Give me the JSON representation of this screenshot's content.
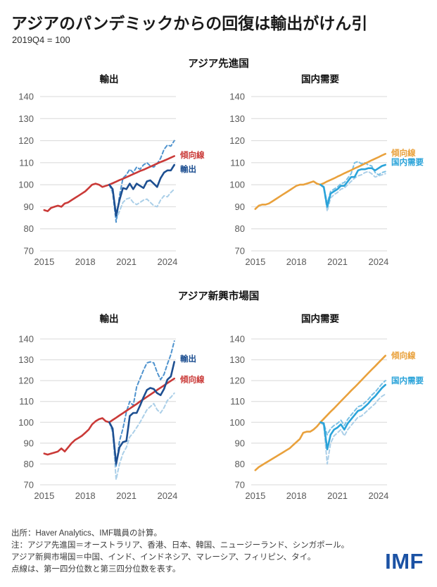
{
  "header": {
    "title": "アジアのパンデミックからの回復は輸出がけん引",
    "subtitle": "2019Q4 = 100"
  },
  "groups": [
    {
      "label": "アジア先進国"
    },
    {
      "label": "アジア新興市場国"
    }
  ],
  "footer": {
    "lines": [
      "出所：Haver Analytics、IMF職員の計算。",
      "注：アジア先進国＝オーストラリア、香港、日本、韓国、ニュージーランド、シンガポール。",
      "アジア新興市場国＝中国、インド、インドネシア、マレーシア、フィリピン、タイ。",
      "点線は、第一四分位数と第三四分位数を表す。"
    ],
    "logo": "IMF",
    "logo_color": "#1b52a4"
  },
  "style": {
    "grid_color": "#d8d8d8",
    "tick_color": "#5a5a5a"
  },
  "chart_data": [
    {
      "type": "line",
      "group": "アジア先進国",
      "title": "輸出",
      "xlim": [
        2014.7,
        2024.62
      ],
      "ylim": [
        70,
        140
      ],
      "x_ticks": [
        2015,
        2018,
        2021,
        2024
      ],
      "y_ticks": [
        140,
        130,
        120,
        110,
        100,
        90,
        80,
        70
      ],
      "grid": true,
      "series": [
        {
          "name": "第一四分位数",
          "color": "#abcfe8",
          "dash": true,
          "width": 2,
          "start": 2019.75,
          "step": 0.25,
          "values": [
            100,
            96,
            84,
            88,
            92,
            93.5,
            94,
            92,
            91,
            92,
            93,
            93.5,
            92,
            90.5,
            90,
            93,
            95,
            94.5,
            96.5,
            98
          ]
        },
        {
          "name": "第三四分位数",
          "color": "#4f93ce",
          "dash": true,
          "width": 2,
          "start": 2019.75,
          "step": 0.25,
          "values": [
            100,
            97,
            83,
            95,
            103,
            104.5,
            107,
            105.5,
            108,
            107,
            109,
            110,
            108.5,
            108,
            109.5,
            112,
            116,
            118,
            117.5,
            120
          ]
        },
        {
          "name": "傾向線",
          "color": "#ca3a38",
          "dash": false,
          "width": 2.6,
          "start": 2015.0,
          "step": 0.25,
          "label_y": 113.5,
          "values": [
            88.5,
            88,
            89.5,
            90,
            90.5,
            90,
            91.5,
            92,
            93,
            94,
            95,
            96,
            97,
            98.5,
            100,
            100.5,
            100,
            99,
            99.5,
            100,
            100.7,
            101.4,
            102.1,
            102.7,
            103.4,
            104.1,
            104.8,
            105.5,
            106.2,
            106.8,
            107.5,
            108.2,
            108.9,
            109.6,
            110.3,
            110.9,
            111.6,
            112.3,
            113
          ]
        },
        {
          "name": "輸出",
          "color": "#1d4f91",
          "dash": false,
          "width": 2.6,
          "start": 2019.75,
          "step": 0.25,
          "label_y": 107,
          "values": [
            100,
            98,
            86,
            93,
            98.5,
            98,
            100.5,
            98,
            100.5,
            99.5,
            98.5,
            101.5,
            102,
            100.5,
            99,
            103,
            105.5,
            106.5,
            106.5,
            109
          ]
        }
      ]
    },
    {
      "type": "line",
      "group": "アジア先進国",
      "title": "国内需要",
      "xlim": [
        2014.7,
        2024.62
      ],
      "ylim": [
        70,
        140
      ],
      "x_ticks": [
        2015,
        2018,
        2021,
        2024
      ],
      "y_ticks": [
        140,
        130,
        120,
        110,
        100,
        90,
        80,
        70
      ],
      "grid": true,
      "series": [
        {
          "name": "第一四分位数",
          "color": "#abcfe8",
          "dash": true,
          "width": 2,
          "start": 2019.75,
          "step": 0.25,
          "values": [
            100,
            98.5,
            88,
            94,
            95.5,
            96.5,
            98,
            98.5,
            100,
            101.5,
            103,
            104,
            104.5,
            105.5,
            106,
            105,
            103.5,
            104,
            104.5,
            105
          ]
        },
        {
          "name": "第三四分位数",
          "color": "#7bc0e4",
          "dash": true,
          "width": 2,
          "start": 2019.75,
          "step": 0.25,
          "values": [
            100,
            99,
            91.5,
            97,
            98,
            99,
            100.5,
            101,
            103,
            105,
            110,
            110.5,
            109.5,
            110,
            109,
            108.5,
            105.5,
            104.5,
            105.5,
            106
          ]
        },
        {
          "name": "傾向線",
          "color": "#e9a13c",
          "dash": false,
          "width": 2.6,
          "start": 2015.0,
          "step": 0.25,
          "label_y": 114.5,
          "values": [
            89,
            90.5,
            91,
            91,
            91.5,
            92.5,
            93.5,
            94.5,
            95.5,
            96.5,
            97.5,
            98.5,
            99.5,
            100,
            100,
            100.5,
            101,
            101.5,
            100.5,
            100,
            100.7,
            101.5,
            102.2,
            102.9,
            103.7,
            104.4,
            105.2,
            105.9,
            106.6,
            107.4,
            108.1,
            108.8,
            109.6,
            110.3,
            111.1,
            111.8,
            112.5,
            113.3,
            114
          ]
        },
        {
          "name": "国内需要",
          "color": "#2aa3d9",
          "dash": false,
          "width": 2.6,
          "start": 2019.75,
          "step": 0.25,
          "label_y": 110.3,
          "values": [
            100,
            99,
            90,
            96,
            97,
            98,
            99.5,
            99.5,
            101.5,
            103.5,
            103.5,
            106.5,
            107,
            107,
            107.5,
            107.5,
            106.5,
            107.5,
            108.5,
            109
          ]
        }
      ]
    },
    {
      "type": "line",
      "group": "アジア新興市場国",
      "title": "輸出",
      "xlim": [
        2014.7,
        2024.62
      ],
      "ylim": [
        70,
        140
      ],
      "x_ticks": [
        2015,
        2018,
        2021,
        2024
      ],
      "y_ticks": [
        140,
        130,
        120,
        110,
        100,
        90,
        80,
        70
      ],
      "grid": true,
      "series": [
        {
          "name": "第一四分位数",
          "color": "#abcfe8",
          "dash": true,
          "width": 2,
          "start": 2019.75,
          "step": 0.25,
          "values": [
            100,
            95,
            72.5,
            80,
            85,
            88,
            93,
            95,
            97.5,
            100,
            103,
            106,
            107.5,
            109,
            106,
            104.5,
            107,
            110.5,
            112,
            114
          ]
        },
        {
          "name": "第三四分位数",
          "color": "#4f93ce",
          "dash": true,
          "width": 2,
          "start": 2019.75,
          "step": 0.25,
          "values": [
            100,
            96,
            79,
            91,
            97,
            105,
            110,
            108,
            117,
            121,
            125,
            128.5,
            129,
            128.5,
            124,
            120.5,
            123,
            128,
            132.5,
            139
          ]
        },
        {
          "name": "傾向線",
          "color": "#ca3a38",
          "dash": false,
          "width": 2.6,
          "start": 2015.0,
          "step": 0.25,
          "label_y": 120.5,
          "values": [
            85,
            84.5,
            85,
            85.5,
            86,
            87.5,
            86,
            88,
            90,
            91.5,
            92.5,
            93.5,
            95,
            96.5,
            99,
            100.5,
            101.5,
            102,
            100.5,
            100,
            101.1,
            102.2,
            103.3,
            104.4,
            105.5,
            106.6,
            107.7,
            108.8,
            110,
            111.1,
            112.2,
            113.3,
            114.4,
            115.5,
            116.6,
            117.7,
            118.8,
            119.9,
            121
          ]
        },
        {
          "name": "輸出",
          "color": "#1d4f91",
          "dash": false,
          "width": 2.6,
          "start": 2019.75,
          "step": 0.25,
          "label_y": 130.5,
          "values": [
            100,
            97,
            80,
            88,
            90.5,
            91,
            103,
            104.5,
            104.5,
            108,
            112,
            115.5,
            116.5,
            116,
            114,
            113,
            116,
            120.5,
            122,
            129
          ]
        }
      ]
    },
    {
      "type": "line",
      "group": "アジア新興市場国",
      "title": "国内需要",
      "xlim": [
        2014.7,
        2024.62
      ],
      "ylim": [
        70,
        140
      ],
      "x_ticks": [
        2015,
        2018,
        2021,
        2024
      ],
      "y_ticks": [
        140,
        130,
        120,
        110,
        100,
        90,
        80,
        70
      ],
      "grid": true,
      "series": [
        {
          "name": "第一四分位数",
          "color": "#abcfe8",
          "dash": true,
          "width": 2,
          "start": 2019.75,
          "step": 0.25,
          "values": [
            100,
            98.5,
            80,
            90,
            93.5,
            95,
            96.5,
            93.5,
            96.5,
            98.5,
            100.5,
            102.5,
            103,
            104.5,
            106,
            107.5,
            109,
            111,
            112.5,
            113.5
          ]
        },
        {
          "name": "第三四分位数",
          "color": "#7bc0e4",
          "dash": true,
          "width": 2,
          "start": 2019.75,
          "step": 0.25,
          "values": [
            100,
            99.5,
            94,
            97,
            98.5,
            99.5,
            101,
            98.5,
            101.5,
            103.5,
            105.5,
            107.5,
            108,
            109.5,
            111,
            113,
            114.5,
            116.5,
            118.5,
            120
          ]
        },
        {
          "name": "傾向線",
          "color": "#e9a13c",
          "dash": false,
          "width": 2.6,
          "start": 2015.0,
          "step": 0.25,
          "label_y": 132,
          "values": [
            77,
            78.5,
            79.5,
            80.5,
            81.5,
            82.5,
            83.5,
            84.5,
            85.5,
            86.5,
            87.5,
            89,
            90.5,
            92,
            95,
            95.5,
            95.5,
            96.5,
            98,
            100,
            101.7,
            103.4,
            105.1,
            106.7,
            108.4,
            110.1,
            111.8,
            113.5,
            115.2,
            116.8,
            118.5,
            120.2,
            121.9,
            123.6,
            125.3,
            126.9,
            128.6,
            130.3,
            132
          ]
        },
        {
          "name": "国内需要",
          "color": "#2aa3d9",
          "dash": false,
          "width": 2.6,
          "start": 2019.75,
          "step": 0.25,
          "label_y": 120,
          "values": [
            100,
            99.5,
            87,
            94,
            96.5,
            97.5,
            99,
            96.5,
            99.5,
            101.5,
            103.5,
            105.5,
            106,
            107.5,
            109,
            111,
            112.5,
            114.5,
            116.5,
            118
          ]
        }
      ]
    }
  ]
}
